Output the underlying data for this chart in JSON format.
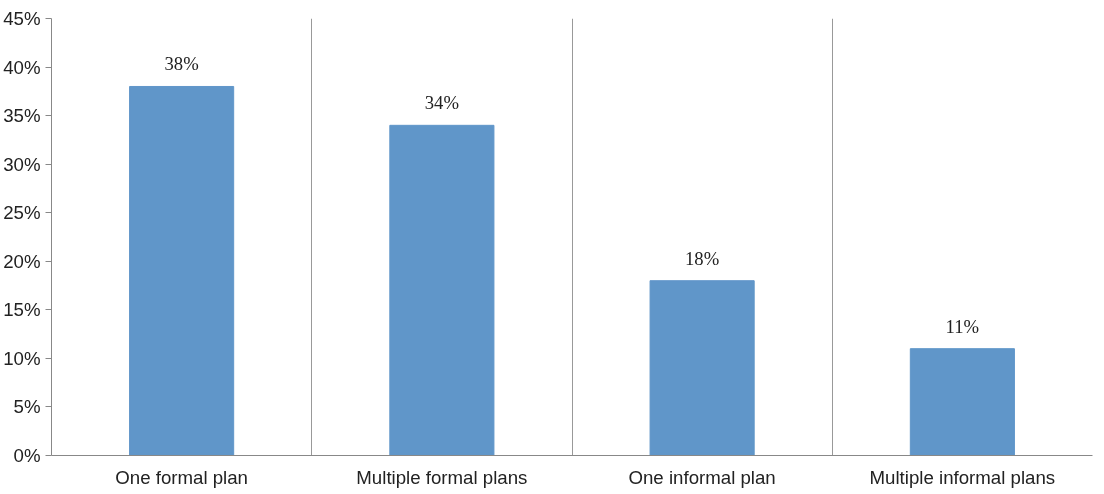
{
  "chart_data": {
    "type": "bar",
    "categories": [
      "One formal plan",
      "Multiple formal plans",
      "One informal plan",
      "Multiple informal plans"
    ],
    "values": [
      38,
      34,
      18,
      11
    ],
    "value_labels": [
      "38%",
      "34%",
      "18%",
      "11%"
    ],
    "color": "#6096c9",
    "ylim": [
      0,
      45
    ],
    "yticks": [
      {
        "value": 0,
        "label": "0%"
      },
      {
        "value": 5,
        "label": "5%"
      },
      {
        "value": 10,
        "label": "10%"
      },
      {
        "value": 15,
        "label": "15%"
      },
      {
        "value": 20,
        "label": "20%"
      },
      {
        "value": 25,
        "label": "25%"
      },
      {
        "value": 30,
        "label": "30%"
      },
      {
        "value": 35,
        "label": "35%"
      },
      {
        "value": 40,
        "label": "40%"
      },
      {
        "value": 45,
        "label": "45%"
      }
    ],
    "grid": "x"
  }
}
